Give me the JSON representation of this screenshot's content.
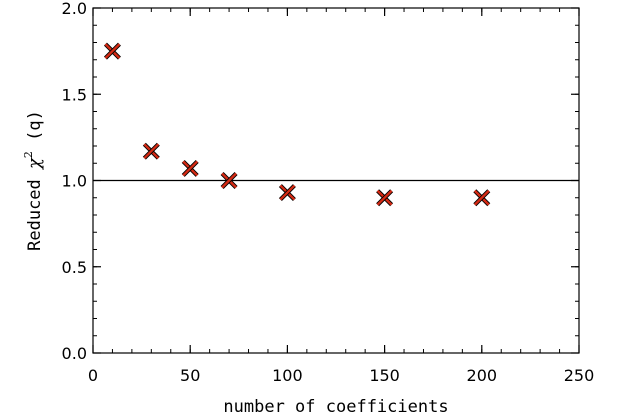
{
  "chart_data": {
    "type": "scatter",
    "xlabel": "number of coefficients",
    "ylabel": {
      "prefix": "Reduced ",
      "symbol": "χ",
      "superscript": "2",
      "suffix": " (q)"
    },
    "xlim": [
      0,
      250
    ],
    "ylim": [
      0.0,
      2.0
    ],
    "x_ticks": [
      0,
      50,
      100,
      150,
      200,
      250
    ],
    "x_tick_labels": [
      "0",
      "50",
      "100",
      "150",
      "200",
      "250"
    ],
    "y_ticks": [
      0.0,
      0.5,
      1.0,
      1.5,
      2.0
    ],
    "y_tick_labels": [
      "0.0",
      "0.5",
      "1.0",
      "1.5",
      "2.0"
    ],
    "x_minor_step": 10,
    "y_minor_step": 0.1,
    "reference_line_y": 1.0,
    "series": [
      {
        "marker": "x",
        "color": "#d42a14",
        "x": [
          10,
          30,
          50,
          70,
          100,
          150,
          200
        ],
        "y": [
          1.75,
          1.17,
          1.07,
          1.0,
          0.93,
          0.9,
          0.9
        ]
      }
    ],
    "grid": false,
    "legend": "none"
  }
}
